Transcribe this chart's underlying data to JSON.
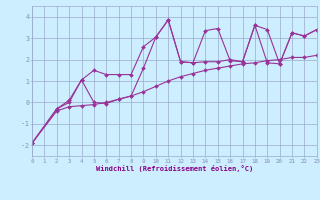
{
  "xlabel": "Windchill (Refroidissement éolien,°C)",
  "bg_color": "#cceeff",
  "line_color": "#993399",
  "grid_color": "#99aacc",
  "xlim": [
    0,
    23
  ],
  "ylim": [
    -2.5,
    4.5
  ],
  "xticks": [
    0,
    1,
    2,
    3,
    4,
    5,
    6,
    7,
    8,
    9,
    10,
    11,
    12,
    13,
    14,
    15,
    16,
    17,
    18,
    19,
    20,
    21,
    22,
    23
  ],
  "yticks": [
    -2,
    -1,
    0,
    1,
    2,
    3,
    4
  ],
  "series1_x": [
    0,
    2,
    3,
    4,
    5,
    6,
    7,
    8,
    9,
    10,
    11,
    12,
    13,
    14,
    15,
    16,
    17,
    18,
    19,
    20,
    21,
    22,
    23
  ],
  "series1_y": [
    -1.9,
    -0.4,
    -0.2,
    -0.15,
    -0.1,
    0.0,
    0.15,
    0.3,
    0.5,
    0.75,
    1.0,
    1.2,
    1.35,
    1.5,
    1.6,
    1.7,
    1.8,
    1.85,
    1.95,
    2.0,
    2.1,
    2.1,
    2.2
  ],
  "series2_x": [
    0,
    2,
    3,
    4,
    5,
    6,
    7,
    8,
    9,
    10,
    11,
    12,
    13,
    14,
    15,
    16,
    17,
    18,
    19,
    20,
    21,
    22,
    23
  ],
  "series2_y": [
    -1.9,
    -0.3,
    0.1,
    1.05,
    1.5,
    1.3,
    1.3,
    1.3,
    2.6,
    3.05,
    3.85,
    1.9,
    1.85,
    3.35,
    3.45,
    1.95,
    1.9,
    3.6,
    1.85,
    1.8,
    3.25,
    3.1,
    3.4
  ],
  "series3_x": [
    0,
    2,
    3,
    4,
    5,
    6,
    7,
    8,
    9,
    10,
    11,
    12,
    13,
    14,
    15,
    16,
    17,
    18,
    19,
    20,
    21,
    22,
    23
  ],
  "series3_y": [
    -1.9,
    -0.3,
    0.0,
    1.05,
    0.0,
    -0.05,
    0.15,
    0.3,
    1.6,
    3.05,
    3.85,
    1.9,
    1.85,
    1.9,
    1.9,
    2.0,
    1.9,
    3.6,
    3.4,
    1.8,
    3.25,
    3.1,
    3.4
  ]
}
